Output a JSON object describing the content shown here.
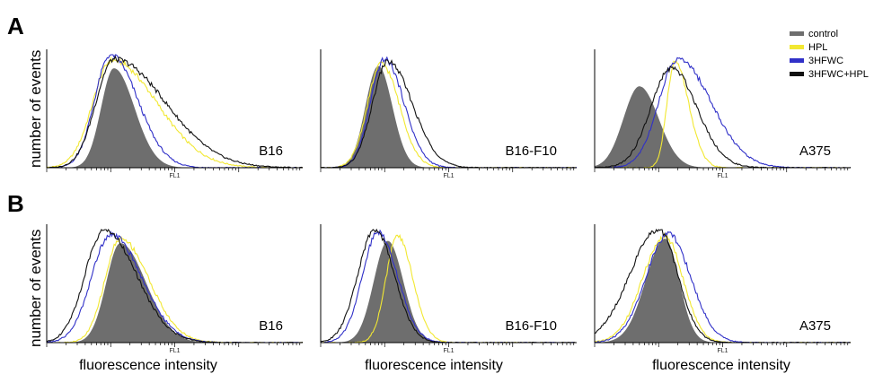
{
  "figure": {
    "panel_letters": [
      "A",
      "B"
    ],
    "ylabel": "number of events",
    "xlabel": "fluorescence intensity",
    "axis_tick_label": "FL1",
    "legend": [
      {
        "label": "control",
        "color": "#6e6e6e"
      },
      {
        "label": "HPL",
        "color": "#f2e832"
      },
      {
        "label": "3HFWC",
        "color": "#3030c8"
      },
      {
        "label": "3HFWC+HPL",
        "color": "#111111"
      }
    ]
  },
  "chart_data": [
    {
      "type": "area",
      "row": "A",
      "cell_line": "B16",
      "x_scale": "log",
      "xlim": [
        1,
        10000
      ],
      "series": [
        {
          "name": "control",
          "color": "#6e6e6e",
          "filled": true,
          "peak_log10": 1.05,
          "width_left": 0.2,
          "width_right": 0.32,
          "height": 0.88
        },
        {
          "name": "HPL",
          "color": "#f2e832",
          "filled": false,
          "peak_log10": 1.02,
          "width_left": 0.3,
          "width_right": 0.7,
          "height": 0.95
        },
        {
          "name": "3HFWC",
          "color": "#3030c8",
          "filled": false,
          "peak_log10": 1.0,
          "width_left": 0.25,
          "width_right": 0.42,
          "height": 1.0
        },
        {
          "name": "3HFWC+HPL",
          "color": "#111111",
          "filled": false,
          "peak_log10": 1.05,
          "width_left": 0.28,
          "width_right": 0.8,
          "height": 0.96
        }
      ]
    },
    {
      "type": "area",
      "row": "A",
      "cell_line": "B16-F10",
      "x_scale": "log",
      "xlim": [
        1,
        10000
      ],
      "series": [
        {
          "name": "control",
          "color": "#6e6e6e",
          "filled": true,
          "peak_log10": 0.9,
          "width_left": 0.2,
          "width_right": 0.22,
          "height": 0.9
        },
        {
          "name": "HPL",
          "color": "#f2e832",
          "filled": false,
          "peak_log10": 0.95,
          "width_left": 0.22,
          "width_right": 0.28,
          "height": 0.92
        },
        {
          "name": "3HFWC",
          "color": "#3030c8",
          "filled": false,
          "peak_log10": 1.0,
          "width_left": 0.22,
          "width_right": 0.3,
          "height": 0.96
        },
        {
          "name": "3HFWC+HPL",
          "color": "#111111",
          "filled": false,
          "peak_log10": 1.05,
          "width_left": 0.24,
          "width_right": 0.38,
          "height": 0.94
        }
      ]
    },
    {
      "type": "area",
      "row": "A",
      "cell_line": "A375",
      "x_scale": "log",
      "xlim": [
        1,
        10000
      ],
      "series": [
        {
          "name": "control",
          "color": "#6e6e6e",
          "filled": true,
          "peak_log10": 0.7,
          "width_left": 0.25,
          "width_right": 0.3,
          "height": 0.72
        },
        {
          "name": "HPL",
          "color": "#f2e832",
          "filled": false,
          "peak_log10": 1.25,
          "width_left": 0.12,
          "width_right": 0.22,
          "height": 0.94
        },
        {
          "name": "3HFWC",
          "color": "#3030c8",
          "filled": false,
          "peak_log10": 1.3,
          "width_left": 0.3,
          "width_right": 0.52,
          "height": 0.96
        },
        {
          "name": "3HFWC+HPL",
          "color": "#111111",
          "filled": false,
          "peak_log10": 1.2,
          "width_left": 0.32,
          "width_right": 0.4,
          "height": 0.88
        }
      ]
    },
    {
      "type": "area",
      "row": "B",
      "cell_line": "B16",
      "x_scale": "log",
      "xlim": [
        1,
        10000
      ],
      "series": [
        {
          "name": "control",
          "color": "#6e6e6e",
          "filled": true,
          "peak_log10": 1.15,
          "width_left": 0.22,
          "width_right": 0.4,
          "height": 0.88
        },
        {
          "name": "HPL",
          "color": "#f2e832",
          "filled": false,
          "peak_log10": 1.15,
          "width_left": 0.24,
          "width_right": 0.45,
          "height": 0.92
        },
        {
          "name": "3HFWC",
          "color": "#3030c8",
          "filled": false,
          "peak_log10": 1.0,
          "width_left": 0.3,
          "width_right": 0.48,
          "height": 0.96
        },
        {
          "name": "3HFWC+HPL",
          "color": "#111111",
          "filled": false,
          "peak_log10": 0.9,
          "width_left": 0.3,
          "width_right": 0.5,
          "height": 1.0
        }
      ]
    },
    {
      "type": "area",
      "row": "B",
      "cell_line": "B16-F10",
      "x_scale": "log",
      "xlim": [
        1,
        10000
      ],
      "series": [
        {
          "name": "control",
          "color": "#6e6e6e",
          "filled": true,
          "peak_log10": 1.05,
          "width_left": 0.22,
          "width_right": 0.24,
          "height": 0.9
        },
        {
          "name": "HPL",
          "color": "#f2e832",
          "filled": false,
          "peak_log10": 1.2,
          "width_left": 0.18,
          "width_right": 0.24,
          "height": 0.94
        },
        {
          "name": "3HFWC",
          "color": "#3030c8",
          "filled": false,
          "peak_log10": 0.9,
          "width_left": 0.25,
          "width_right": 0.3,
          "height": 0.98
        },
        {
          "name": "3HFWC+HPL",
          "color": "#111111",
          "filled": false,
          "peak_log10": 0.85,
          "width_left": 0.27,
          "width_right": 0.3,
          "height": 1.0
        }
      ]
    },
    {
      "type": "area",
      "row": "B",
      "cell_line": "A375",
      "x_scale": "log",
      "xlim": [
        1,
        10000
      ],
      "series": [
        {
          "name": "control",
          "color": "#6e6e6e",
          "filled": true,
          "peak_log10": 1.1,
          "width_left": 0.3,
          "width_right": 0.22,
          "height": 0.92
        },
        {
          "name": "HPL",
          "color": "#f2e832",
          "filled": false,
          "peak_log10": 1.1,
          "width_left": 0.35,
          "width_right": 0.28,
          "height": 0.94
        },
        {
          "name": "3HFWC",
          "color": "#3030c8",
          "filled": false,
          "peak_log10": 1.15,
          "width_left": 0.35,
          "width_right": 0.35,
          "height": 0.96
        },
        {
          "name": "3HFWC+HPL",
          "color": "#111111",
          "filled": false,
          "peak_log10": 1.0,
          "width_left": 0.45,
          "width_right": 0.3,
          "height": 1.0
        }
      ]
    }
  ]
}
